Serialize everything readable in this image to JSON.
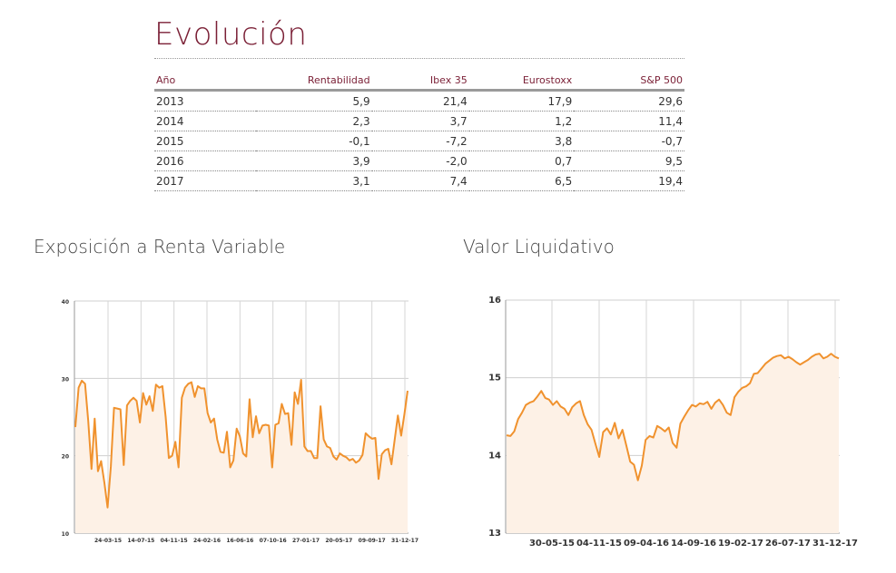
{
  "evolucion": {
    "title": "Evolución",
    "headers": [
      "Año",
      "Rentabilidad",
      "Ibex 35",
      "Eurostoxx",
      "S&P 500"
    ],
    "rows": [
      [
        "2013",
        "5,9",
        "21,4",
        "17,9",
        "29,6"
      ],
      [
        "2014",
        "2,3",
        "3,7",
        "1,2",
        "11,4"
      ],
      [
        "2015",
        "-0,1",
        "-7,2",
        "3,8",
        "-0,7"
      ],
      [
        "2016",
        "3,9",
        "-2,0",
        "0,7",
        "9,5"
      ],
      [
        "2017",
        "3,1",
        "7,4",
        "6,5",
        "19,4"
      ]
    ]
  },
  "chart_data": [
    {
      "type": "area",
      "title": "Exposición a Renta Variable",
      "ylim": [
        10,
        40
      ],
      "yticks": [
        "10",
        "20",
        "30",
        "40"
      ],
      "x_tick_labels": [
        "24-03-15",
        "14-07-15",
        "04-11-15",
        "24-02-16",
        "16-06-16",
        "07-10-16",
        "27-01-17",
        "20-05-17",
        "09-09-17",
        "31-12-17"
      ],
      "grid": true,
      "line_color": "#f0922e",
      "fill_color": "#fdf1e6",
      "values": [
        23.7,
        28.8,
        29.7,
        29.3,
        24.5,
        18.3,
        24.8,
        18.0,
        19.3,
        16.5,
        13.3,
        18.6,
        26.2,
        26.1,
        26.0,
        18.8,
        26.5,
        27.1,
        27.5,
        27.1,
        24.3,
        28.1,
        26.6,
        27.7,
        25.8,
        29.2,
        28.8,
        29.0,
        25.0,
        19.7,
        20.0,
        21.8,
        18.5,
        27.5,
        28.8,
        29.3,
        29.5,
        27.6,
        29.0,
        28.7,
        28.7,
        25.5,
        24.3,
        24.8,
        22.1,
        20.5,
        20.4,
        23.1,
        18.5,
        19.4,
        23.5,
        22.5,
        20.3,
        19.9,
        27.3,
        22.4,
        25.1,
        22.9,
        23.9,
        24.0,
        23.9,
        18.5,
        24.0,
        24.2,
        26.7,
        25.4,
        25.5,
        21.4,
        28.2,
        26.7,
        29.8,
        21.2,
        20.6,
        20.6,
        19.7,
        19.7,
        26.4,
        22.1,
        21.2,
        21.0,
        19.9,
        19.5,
        20.3,
        20.0,
        19.8,
        19.4,
        19.6,
        19.1,
        19.4,
        20.1,
        22.9,
        22.5,
        22.2,
        22.3,
        17.0,
        20.2,
        20.7,
        20.9,
        18.9,
        22.1,
        25.2,
        22.6,
        25.3,
        28.4
      ]
    },
    {
      "type": "area",
      "title": "Valor Liquidativo",
      "ylim": [
        13,
        16
      ],
      "yticks": [
        "13",
        "14",
        "15",
        "16"
      ],
      "x_tick_labels": [
        "30-05-15",
        "04-11-15",
        "09-04-16",
        "14-09-16",
        "19-02-17",
        "26-07-17",
        "31-12-17"
      ],
      "grid": true,
      "line_color": "#f0922e",
      "fill_color": "#fdf1e6",
      "values": [
        14.26,
        14.25,
        14.31,
        14.47,
        14.55,
        14.65,
        14.68,
        14.7,
        14.76,
        14.83,
        14.74,
        14.72,
        14.65,
        14.7,
        14.63,
        14.6,
        14.52,
        14.62,
        14.67,
        14.7,
        14.52,
        14.4,
        14.33,
        14.15,
        13.98,
        14.3,
        14.35,
        14.27,
        14.42,
        14.22,
        14.33,
        14.13,
        13.92,
        13.88,
        13.68,
        13.87,
        14.2,
        14.25,
        14.23,
        14.38,
        14.35,
        14.31,
        14.36,
        14.16,
        14.1,
        14.41,
        14.5,
        14.58,
        14.65,
        14.63,
        14.67,
        14.66,
        14.69,
        14.6,
        14.68,
        14.72,
        14.65,
        14.55,
        14.52,
        14.75,
        14.82,
        14.87,
        14.89,
        14.93,
        15.05,
        15.06,
        15.12,
        15.18,
        15.22,
        15.26,
        15.28,
        15.29,
        15.25,
        15.27,
        15.24,
        15.2,
        15.17,
        15.2,
        15.23,
        15.27,
        15.3,
        15.31,
        15.25,
        15.27,
        15.31,
        15.27,
        15.25
      ]
    }
  ]
}
